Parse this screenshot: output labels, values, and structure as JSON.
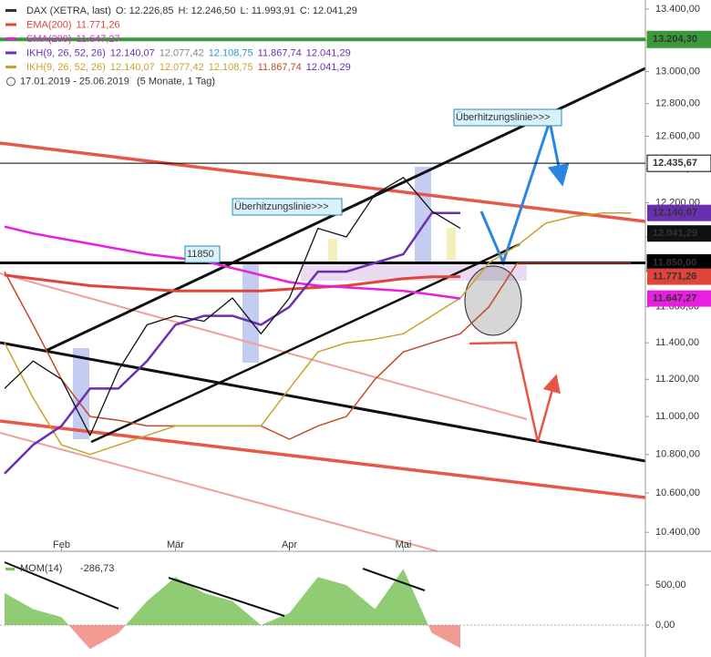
{
  "chart_data": {
    "type": "line",
    "log_y": true,
    "ohlc_labels": [
      "O: 12.226,85",
      "H: 12.246,50",
      "L: 11.993,91",
      "C: 12.041,29"
    ],
    "period": "17.01.2019 - 25.06.2019",
    "period_note": "(5 Monate, 1 Tag)",
    "categories": [
      null,
      null,
      "Feb",
      null,
      null,
      null,
      "Mär",
      null,
      null,
      null,
      "Apr",
      null,
      null,
      null,
      "Mai",
      null,
      null,
      null,
      null,
      null,
      null,
      null,
      null
    ],
    "ylim": [
      10305,
      13459
    ],
    "yticks": [
      {
        "value": 13400,
        "label": "13.400,00"
      },
      {
        "value": 13200,
        "label": "13.200,00"
      },
      {
        "value": 13000,
        "label": "13.000,00"
      },
      {
        "value": 12800,
        "label": "12.800,00"
      },
      {
        "value": 12600,
        "label": "12.600,00"
      },
      {
        "value": 12400,
        "label": "12.400,00"
      },
      {
        "value": 12200,
        "label": "12.200,00"
      },
      {
        "value": 12000,
        "label": "12.000,00"
      },
      {
        "value": 11800,
        "label": "11.800,00"
      },
      {
        "value": 11600,
        "label": "11.600,00"
      },
      {
        "value": 11400,
        "label": "11.400,00"
      },
      {
        "value": 11200,
        "label": "11.200,00"
      },
      {
        "value": 11000,
        "label": "11.000,00"
      },
      {
        "value": 10800,
        "label": "10.800,00"
      },
      {
        "value": 10600,
        "label": "10.600,00"
      },
      {
        "value": 10400,
        "label": "10.400,00"
      }
    ],
    "series": [
      {
        "name": "DAX (XETRA, last)",
        "color": "#111111",
        "width": 1.3,
        "values": [
          11150,
          11300,
          11200,
          10900,
          11250,
          11500,
          11550,
          11520,
          11650,
          11450,
          11650,
          12050,
          12000,
          12250,
          12350,
          12150,
          12050,
          null,
          null,
          null,
          null,
          null,
          null
        ]
      },
      {
        "name": "EMA(200)",
        "color": "#e0453a",
        "width": 3,
        "legend_values": [
          "11.771,26"
        ],
        "legend_value_colors": [
          "#e0453a"
        ],
        "values": [
          11780,
          11760,
          11740,
          11720,
          11710,
          11700,
          11690,
          11690,
          11690,
          11690,
          11700,
          11710,
          11720,
          11740,
          11760,
          11770,
          11771.26,
          null,
          null,
          null,
          null,
          null,
          null
        ]
      },
      {
        "name": "SMA(200)",
        "color": "#e81ee0",
        "width": 2.5,
        "legend_values": [
          "11.647,27"
        ],
        "legend_value_colors": [
          "#e81ee0"
        ],
        "values": [
          12060,
          12020,
          11990,
          11960,
          11930,
          11900,
          11880,
          11860,
          11820,
          11780,
          11740,
          11720,
          11710,
          11700,
          11690,
          11670,
          11647.27,
          null,
          null,
          null,
          null,
          null,
          null
        ]
      },
      {
        "name": "IKH(9, 26, 52, 26)",
        "color": "#6a2fb0",
        "width": 2.5,
        "legend_values": [
          "12.140,07",
          "12.077,42",
          "12.108,75",
          "11.867,74",
          "12.041,29"
        ],
        "legend_value_colors": [
          "#6a2fb0",
          "#888888",
          "#2a9ad0",
          "#6a2fb0",
          "#6a2fb0"
        ],
        "values": [
          10700,
          10850,
          10950,
          11150,
          11150,
          11300,
          11500,
          11550,
          11550,
          11500,
          11600,
          11800,
          11800,
          11850,
          11900,
          12140,
          12140.07,
          null,
          null,
          null,
          null,
          null,
          null
        ]
      },
      {
        "name": "IKH(9, 26, 52, 26)",
        "color": "#c9a227",
        "width": 1.5,
        "legend_values": [
          "12.140,07",
          "12.077,42",
          "12.108,75",
          "11.867,74",
          "12.041,29"
        ],
        "legend_value_colors": [
          "#c9a227",
          "#c9a227",
          "#c9a227",
          "#c04a2a",
          "#6a2fb0"
        ],
        "values": [
          11400,
          11100,
          10850,
          10800,
          10850,
          10900,
          10950,
          10950,
          10950,
          10950,
          11150,
          11350,
          11400,
          11420,
          11450,
          11550,
          11650,
          11850,
          11950,
          12080,
          12120,
          12140,
          12140
        ]
      },
      {
        "color": "#c04a2a",
        "width": 1.5,
        "values": [
          11800,
          11500,
          11200,
          11000,
          10980,
          10950,
          10950,
          10950,
          10950,
          10950,
          10880,
          10950,
          11000,
          11200,
          11350,
          11400,
          11450,
          11600,
          11850,
          11850,
          11850,
          11850,
          11850
        ]
      }
    ],
    "hlines": [
      {
        "value": 13204.3,
        "label": "13.204,30",
        "color": "#3a9a3a",
        "width": 4
      },
      {
        "value": 12435.67,
        "label": "12.435,67",
        "color": "#000000",
        "width": 1,
        "text_color": "#000000",
        "box_fill": "#ffffff"
      },
      {
        "value": 11850,
        "label": "11.850,00",
        "color": "#000000",
        "width": 3
      }
    ],
    "price_labels": [
      {
        "value": 12140.07,
        "label": "12.140,07",
        "color": "#6a2fb0"
      },
      {
        "value": 12041.29,
        "label": "12.041,29",
        "color": "#111111"
      },
      {
        "value": 11771.26,
        "label": "11.771,26",
        "color": "#e0453a"
      },
      {
        "value": 11647.27,
        "label": "11.647,27",
        "color": "#e81ee0",
        "text_color": "#000000"
      }
    ],
    "annotations": [
      "Überhitzungslinie>>>",
      "11850",
      "Überhitzungslinie>>>"
    ],
    "indicator": {
      "name": "MOM(14)",
      "value_label": "-286,73",
      "color": "#7cc35a",
      "negative_color": "#f08a80",
      "ylim": [
        -398,
        841
      ],
      "yticks": [
        {
          "value": 500,
          "label": "500,00"
        },
        {
          "value": 0,
          "label": "0,00"
        }
      ],
      "values": [
        400,
        200,
        100,
        -300,
        -100,
        300,
        600,
        400,
        300,
        0,
        150,
        600,
        500,
        200,
        700,
        -100,
        -286.73,
        null,
        null,
        null,
        null,
        null,
        null
      ]
    }
  }
}
